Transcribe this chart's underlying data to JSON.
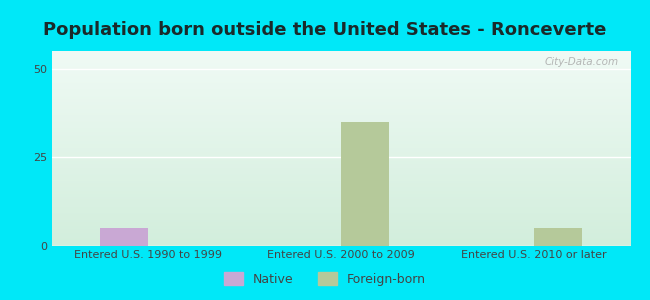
{
  "title": "Population born outside the United States - Ronceverte",
  "categories": [
    "Entered U.S. 1990 to 1999",
    "Entered U.S. 2000 to 2009",
    "Entered U.S. 2010 or later"
  ],
  "native_values": [
    5,
    0,
    0
  ],
  "foreign_values": [
    0,
    35,
    5
  ],
  "native_color": "#c9a8d4",
  "foreign_color": "#b5c99a",
  "ylim": [
    0,
    55
  ],
  "yticks": [
    0,
    25,
    50
  ],
  "background_outer": "#00e8f8",
  "title_color": "#1a2a2a",
  "title_fontsize": 13,
  "tick_label_fontsize": 8,
  "legend_fontsize": 9,
  "bar_width": 0.25,
  "watermark": "City-Data.com"
}
